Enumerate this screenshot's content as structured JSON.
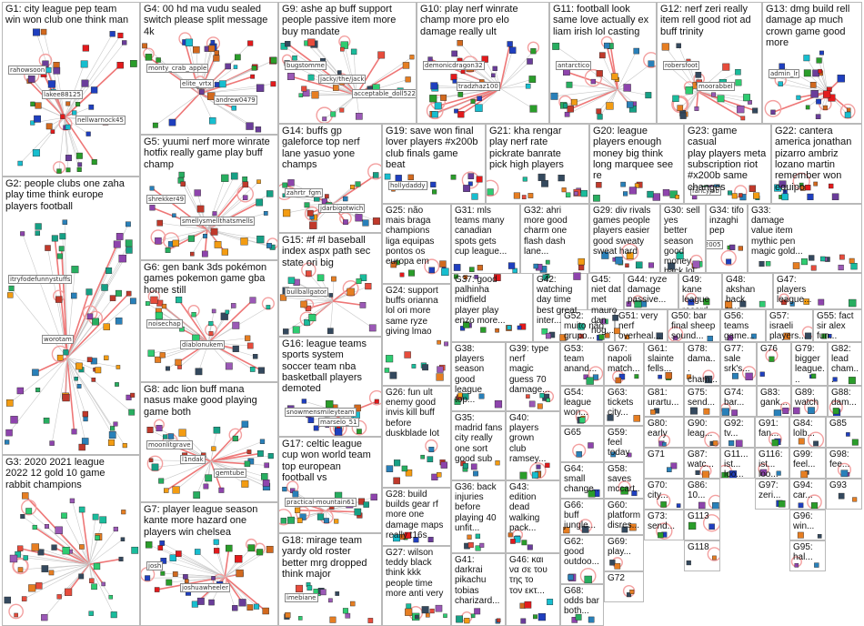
{
  "groups": [
    {
      "id": "G1",
      "lines": [
        "G1: city league pep team",
        "win won club one think man"
      ],
      "nodes": [
        "rahowsoon",
        "lakee88125",
        "nellwarnock45"
      ]
    },
    {
      "id": "G2",
      "lines": [
        "G2: people clubs one zaha",
        "play time think europe",
        "players football"
      ],
      "nodes": [
        "itryfodefunnystuffs",
        "worotam"
      ]
    },
    {
      "id": "G3",
      "lines": [
        "G3: 2020 2021 league",
        "2022 12 gold 10 game",
        "rabbit champions"
      ],
      "nodes": []
    },
    {
      "id": "G4",
      "lines": [
        "G4: 00 hd ma vudu sealed",
        "switch please split message",
        "4k"
      ],
      "nodes": [
        "monty_crab_apple",
        "elite_vrtx",
        "andrew0479"
      ]
    },
    {
      "id": "G5",
      "lines": [
        "G5: yuumi nerf more winrate",
        "hotfix really game play buff",
        "champ"
      ],
      "nodes": [
        "shrekker49",
        "smellysmellthatsmells"
      ]
    },
    {
      "id": "G6",
      "lines": [
        "G6: gen bank 3ds pokémon",
        "games pokemon game gba",
        "home still"
      ],
      "nodes": [
        "noisechap",
        "diablonukem"
      ]
    },
    {
      "id": "G7",
      "lines": [
        "G7: player league season",
        "kante more hazard one",
        "players win chelsea"
      ],
      "nodes": [
        "josh",
        "joshuawheeler"
      ]
    },
    {
      "id": "G8",
      "lines": [
        "G8: adc lion buff mana",
        "nasus make good playing",
        "game both"
      ],
      "nodes": [
        "moonlitgrave",
        "l1ndak",
        "gemtube"
      ]
    },
    {
      "id": "G9",
      "lines": [
        "G9: ashe ap buff support",
        "people passive item more",
        "buy mandate"
      ],
      "nodes": [
        "bugstomme",
        "jacky/the/jack",
        "acceptable_doll5221"
      ]
    },
    {
      "id": "G10",
      "lines": [
        "G10: play nerf winrate",
        "champ more pro elo",
        "damage really ult"
      ],
      "nodes": [
        "demonicdragon32",
        "tradzhaz100"
      ]
    },
    {
      "id": "G11",
      "lines": [
        "G11: football look",
        "same love actually ex",
        "liam irish lol casting"
      ],
      "nodes": [
        "antarctico"
      ]
    },
    {
      "id": "G12",
      "lines": [
        "G12: nerf zeri really",
        "item rell good riot ad",
        "buff trinity"
      ],
      "nodes": [
        "robersfoot",
        "moorabbel"
      ]
    },
    {
      "id": "G13",
      "lines": [
        "G13: dmg build rell",
        "damage ap much",
        "crown game good",
        "more"
      ],
      "nodes": [
        "admin_lr"
      ]
    },
    {
      "id": "G14",
      "lines": [
        "G14: buffs gp",
        "galeforce top nerf",
        "lane yasuo yone",
        "champs"
      ],
      "nodes": [
        "zahrtr_fgm",
        "jdarbigotwich"
      ]
    },
    {
      "id": "G15",
      "lines": [
        "G15: #f #l baseball",
        "index aspx path sec",
        "state ori big"
      ],
      "nodes": [
        "bullballgator"
      ]
    },
    {
      "id": "G16",
      "lines": [
        "G16: league teams",
        "sports system",
        "soccer team nba",
        "basketball players",
        "demoted"
      ],
      "nodes": [
        "snowmensmileyteam",
        "marselo_51"
      ]
    },
    {
      "id": "G17",
      "lines": [
        "G17: celtic league",
        "cup won world team",
        "top european",
        "football vs"
      ],
      "nodes": [
        "practical-mountain61"
      ]
    },
    {
      "id": "G18",
      "lines": [
        "G18: mirage team",
        "yardy old roster",
        "better mrg dropped",
        "think major"
      ],
      "nodes": [
        "imebiane"
      ]
    },
    {
      "id": "G19",
      "lines": [
        "G19: save won final",
        "lover players #x200b",
        "club finals game",
        "beat"
      ],
      "nodes": [
        "hollydaddy"
      ]
    },
    {
      "id": "G20",
      "lines": [
        "G20: league",
        "players enough",
        "money big think",
        "long marquee see",
        "re"
      ],
      "nodes": []
    },
    {
      "id": "G21",
      "lines": [
        "G21: kha rengar",
        "play nerf rate",
        "pickrate banrate",
        "pick high players"
      ],
      "nodes": []
    },
    {
      "id": "G22",
      "lines": [
        "G22: cantera",
        "america jonathan",
        "pizarro ambriz",
        "lozano martin",
        "remember won",
        "equipo"
      ],
      "nodes": []
    },
    {
      "id": "G23",
      "lines": [
        "G23: game casual",
        "play players meta",
        "subscription riot",
        "#x200b same",
        "changes"
      ],
      "nodes": [
        "fancyjob"
      ]
    },
    {
      "id": "G24",
      "lines": [
        "G24: support",
        "buffs orianna",
        "lol ori more",
        "same ryze",
        "giving lmao"
      ],
      "nodes": []
    },
    {
      "id": "G25",
      "lines": [
        "G25: não",
        "mais braga",
        "champions",
        "liga equipas",
        "pontos os",
        "europa em"
      ],
      "nodes": []
    },
    {
      "id": "G26",
      "lines": [
        "G26: fun ult",
        "enemy good",
        "invis kill buff",
        "before",
        "duskblade lot"
      ],
      "nodes": []
    },
    {
      "id": "G27",
      "lines": [
        "G27: wilson",
        "teddy black",
        "think kkk",
        "people time",
        "more anti very"
      ],
      "nodes": []
    },
    {
      "id": "G28",
      "lines": [
        "G28: build",
        "builds gear rf",
        "more one",
        "damage maps",
        "really t16s"
      ],
      "nodes": []
    },
    {
      "id": "G29",
      "lines": [
        "G29: div rivals",
        "games people",
        "players easier",
        "good sweaty",
        "sweat hard"
      ],
      "nodes": []
    },
    {
      "id": "G30",
      "lines": [
        "G30: sell yes",
        "better season",
        "good money",
        "back lol loan",
        "player"
      ],
      "nodes": []
    },
    {
      "id": "G31",
      "lines": [
        "G31: mls",
        "teams many",
        "canadian",
        "spots gets",
        "cup league..."
      ],
      "nodes": []
    },
    {
      "id": "G32",
      "lines": [
        "G32: ahri",
        "more good",
        "charm one",
        "flash dash",
        "lane..."
      ],
      "nodes": []
    },
    {
      "id": "G33",
      "lines": [
        "G33:",
        "damage",
        "value item",
        "mythic pen",
        "magic gold..."
      ],
      "nodes": []
    },
    {
      "id": "G34",
      "lines": [
        "G34: tifo",
        "inzaghi pep"
      ],
      "nodes": [
        "kw2005"
      ]
    },
    {
      "id": "G35",
      "lines": [
        "G35:",
        "madrid fans",
        "city really",
        "one sort",
        "good sub"
      ],
      "nodes": []
    },
    {
      "id": "G36",
      "lines": [
        "G36: back",
        "injuries",
        "before",
        "playing 40",
        "unfit..."
      ],
      "nodes": []
    },
    {
      "id": "G37",
      "lines": [
        "G37: good",
        "palhinha",
        "midfield",
        "player play",
        "enzo more..."
      ],
      "nodes": []
    },
    {
      "id": "G38",
      "lines": [
        "G38:",
        "players",
        "season",
        "good",
        "league top..."
      ],
      "nodes": []
    },
    {
      "id": "G39",
      "lines": [
        "G39: type",
        "nerf",
        "magic",
        "guess 70",
        "damage..."
      ],
      "nodes": []
    },
    {
      "id": "G40",
      "lines": [
        "G40:",
        "players",
        "grown",
        "club",
        "ramsey..."
      ],
      "nodes": []
    },
    {
      "id": "G41",
      "lines": [
        "G41:",
        "darkrai",
        "pikachu",
        "tobias",
        "charizard..."
      ],
      "nodes": []
    },
    {
      "id": "G42",
      "lines": [
        "G42:",
        "watching",
        "day time",
        "best great",
        "inter..."
      ],
      "nodes": []
    },
    {
      "id": "G43",
      "lines": [
        "G43:",
        "edition",
        "dead",
        "walking",
        "pack..."
      ],
      "nodes": []
    },
    {
      "id": "G44",
      "lines": [
        "G44: ryze",
        "damage",
        "passive..."
      ],
      "nodes": []
    },
    {
      "id": "G45",
      "lines": [
        "G45: niet dat",
        "met mauro",
        "dan nog..."
      ],
      "nodes": []
    },
    {
      "id": "G46",
      "lines": [
        "G46: και",
        "να σε του",
        "της το",
        "τον εκτ..."
      ],
      "nodes": []
    },
    {
      "id": "G47",
      "lines": [
        "G47:",
        "players",
        "league..."
      ],
      "nodes": []
    },
    {
      "id": "G48",
      "lines": [
        "G48:",
        "akshan",
        "back true..."
      ],
      "nodes": []
    },
    {
      "id": "G49",
      "lines": [
        "G49: kane",
        "league",
        "record..."
      ],
      "nodes": []
    },
    {
      "id": "G50",
      "lines": [
        "G50: bar",
        "final sheep",
        "sound..."
      ],
      "nodes": []
    },
    {
      "id": "G51",
      "lines": [
        "G51: very",
        "nerf",
        "overheal..."
      ],
      "nodes": []
    },
    {
      "id": "G52",
      "lines": [
        "G52:",
        "muito não",
        "grupo..."
      ],
      "nodes": []
    },
    {
      "id": "G53",
      "lines": [
        "G53:",
        "team",
        "anand..."
      ],
      "nodes": []
    },
    {
      "id": "G54",
      "lines": [
        "G54:",
        "league",
        "won..."
      ],
      "nodes": []
    },
    {
      "id": "G55",
      "lines": [
        "G55: fact",
        "sir alex",
        "fun..."
      ],
      "nodes": []
    },
    {
      "id": "G56",
      "lines": [
        "G56:",
        "teams",
        "game..."
      ],
      "nodes": []
    },
    {
      "id": "G57",
      "lines": [
        "G57:",
        "israeli",
        "players..."
      ],
      "nodes": []
    },
    {
      "id": "G58",
      "lines": [
        "G58:",
        "saves",
        "mccart..."
      ],
      "nodes": []
    },
    {
      "id": "G59",
      "lines": [
        "G59:",
        "feel",
        "today"
      ],
      "nodes": []
    },
    {
      "id": "G60",
      "lines": [
        "G60:",
        "platform",
        "disres..."
      ],
      "nodes": []
    },
    {
      "id": "G61",
      "lines": [
        "G61:",
        "slainte",
        "fells..."
      ],
      "nodes": []
    },
    {
      "id": "G62",
      "lines": [
        "G62:",
        "good",
        "outdoo..."
      ],
      "nodes": []
    },
    {
      "id": "G63",
      "lines": [
        "G63:",
        "tickets",
        "city..."
      ],
      "nodes": []
    },
    {
      "id": "G64",
      "lines": [
        "G64:",
        "small",
        "change..."
      ],
      "nodes": []
    },
    {
      "id": "G65",
      "lines": [
        "G65"
      ],
      "nodes": []
    },
    {
      "id": "G66",
      "lines": [
        "G66:",
        "buff",
        "jungle..."
      ],
      "nodes": []
    },
    {
      "id": "G67",
      "lines": [
        "G67:",
        "napoli",
        "match..."
      ],
      "nodes": []
    },
    {
      "id": "G68",
      "lines": [
        "G68:",
        "odds bar",
        "both..."
      ],
      "nodes": []
    },
    {
      "id": "G69",
      "lines": [
        "G69:",
        "play..."
      ],
      "nodes": []
    },
    {
      "id": "G70",
      "lines": [
        "G70:",
        "city..."
      ],
      "nodes": []
    },
    {
      "id": "G71",
      "lines": [
        "G71"
      ],
      "nodes": []
    },
    {
      "id": "G72",
      "lines": [
        "G72"
      ],
      "nodes": []
    },
    {
      "id": "G73",
      "lines": [
        "G73:",
        "send..."
      ],
      "nodes": []
    },
    {
      "id": "G74",
      "lines": [
        "G74:",
        "bar..."
      ],
      "nodes": []
    },
    {
      "id": "G75",
      "lines": [
        "G75:",
        "send..."
      ],
      "nodes": []
    },
    {
      "id": "G76",
      "lines": [
        "G76"
      ],
      "nodes": []
    },
    {
      "id": "G77",
      "lines": [
        "G77:",
        "sale",
        "srk's..."
      ],
      "nodes": []
    },
    {
      "id": "G78",
      "lines": [
        "G78:",
        "dama...",
        "cham..."
      ],
      "nodes": []
    },
    {
      "id": "G79",
      "lines": [
        "G79:",
        "bigger",
        "league..."
      ],
      "nodes": []
    },
    {
      "id": "G80",
      "lines": [
        "G80:",
        "early"
      ],
      "nodes": []
    },
    {
      "id": "G81",
      "lines": [
        "G81:",
        "urartu..."
      ],
      "nodes": []
    },
    {
      "id": "G82",
      "lines": [
        "G82:",
        "lead",
        "cham..."
      ],
      "nodes": []
    },
    {
      "id": "G83",
      "lines": [
        "G83:",
        "gank..."
      ],
      "nodes": []
    },
    {
      "id": "G84",
      "lines": [
        "G84:",
        "lolb..."
      ],
      "nodes": []
    },
    {
      "id": "G85",
      "lines": [
        "G85"
      ],
      "nodes": []
    },
    {
      "id": "G86",
      "lines": [
        "G86:",
        "10..."
      ],
      "nodes": []
    },
    {
      "id": "G87",
      "lines": [
        "G87:",
        "watc..."
      ],
      "nodes": []
    },
    {
      "id": "G88",
      "lines": [
        "G88:",
        "dam..."
      ],
      "nodes": []
    },
    {
      "id": "G89",
      "lines": [
        "G89:",
        "watch"
      ],
      "nodes": []
    },
    {
      "id": "G90",
      "lines": [
        "G90:",
        "leag..."
      ],
      "nodes": []
    },
    {
      "id": "G91",
      "lines": [
        "G91:",
        "fan..."
      ],
      "nodes": []
    },
    {
      "id": "G92",
      "lines": [
        "G92:",
        "tv..."
      ],
      "nodes": []
    },
    {
      "id": "G93",
      "lines": [
        "G93"
      ],
      "nodes": []
    },
    {
      "id": "G94",
      "lines": [
        "G94:",
        "car..."
      ],
      "nodes": []
    },
    {
      "id": "G95",
      "lines": [
        "G95:",
        "hal..."
      ],
      "nodes": []
    },
    {
      "id": "G96",
      "lines": [
        "G96:",
        "win..."
      ],
      "nodes": []
    },
    {
      "id": "G97",
      "lines": [
        "G97:",
        "zeri..."
      ],
      "nodes": []
    },
    {
      "id": "G98",
      "lines": [
        "G98:",
        "fee..."
      ],
      "nodes": []
    },
    {
      "id": "G99",
      "lines": [
        "G99:",
        "feel..."
      ],
      "nodes": []
    },
    {
      "id": "G11x",
      "lines": [
        "G11...",
        "ist...",
        "loo..."
      ],
      "nodes": []
    },
    {
      "id": "G116",
      "lines": [
        "G116:",
        "ist...",
        "loo..."
      ],
      "nodes": []
    },
    {
      "id": "G118",
      "lines": [
        "G118"
      ],
      "nodes": []
    },
    {
      "id": "G113",
      "lines": [
        "G113"
      ],
      "nodes": []
    }
  ]
}
